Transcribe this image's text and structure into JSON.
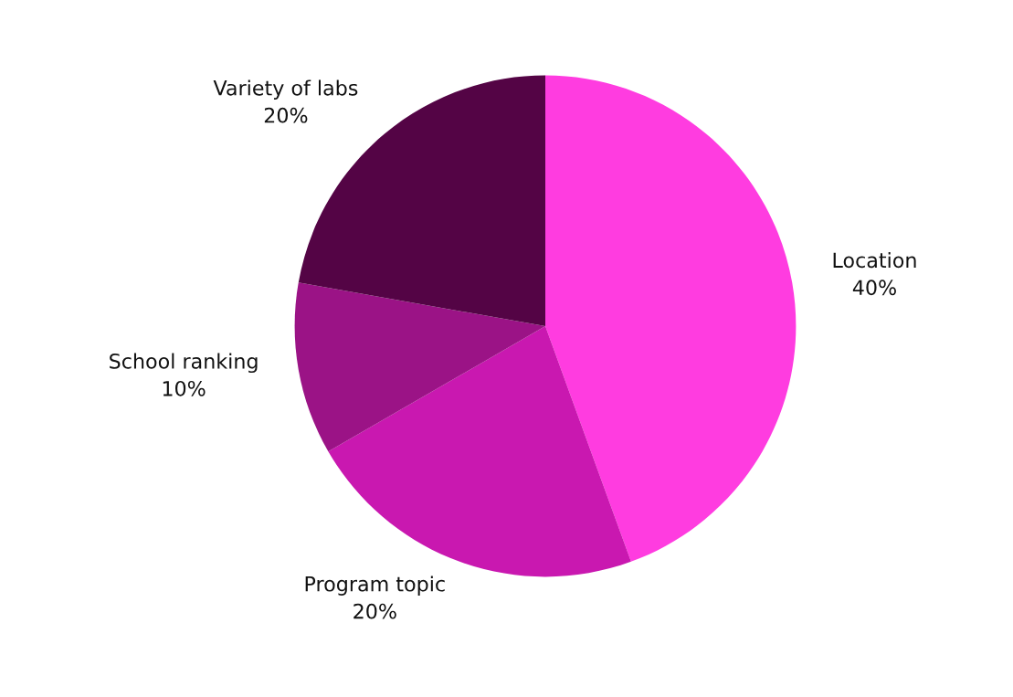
{
  "chart_data": {
    "type": "pie",
    "categories": [
      "Location",
      "Program topic",
      "School ranking",
      "Variety of labs"
    ],
    "values": [
      40,
      20,
      10,
      20
    ],
    "value_labels": [
      "40%",
      "20%",
      "10%",
      "20%"
    ],
    "colors": [
      "#ff3ce0",
      "#c918b0",
      "#9b1386",
      "#540445"
    ],
    "legend": false
  }
}
